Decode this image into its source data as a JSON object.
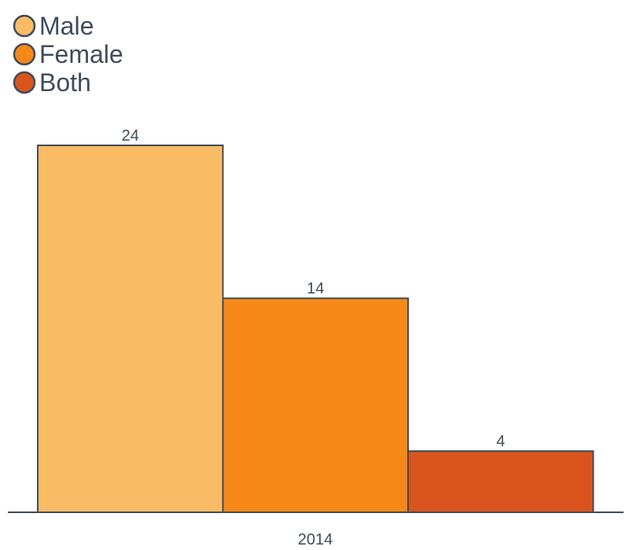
{
  "chart_data": {
    "type": "bar",
    "categories": [
      "2014"
    ],
    "series": [
      {
        "name": "Male",
        "values": [
          24
        ],
        "color": "#f9bc65"
      },
      {
        "name": "Female",
        "values": [
          14
        ],
        "color": "#f68817"
      },
      {
        "name": "Both",
        "values": [
          4
        ],
        "color": "#db541e"
      }
    ],
    "ylim": [
      0,
      24
    ],
    "legend": "top-left",
    "grid": false,
    "axis_color": "#3f4c5a",
    "text_color": "#3f4c5a"
  }
}
